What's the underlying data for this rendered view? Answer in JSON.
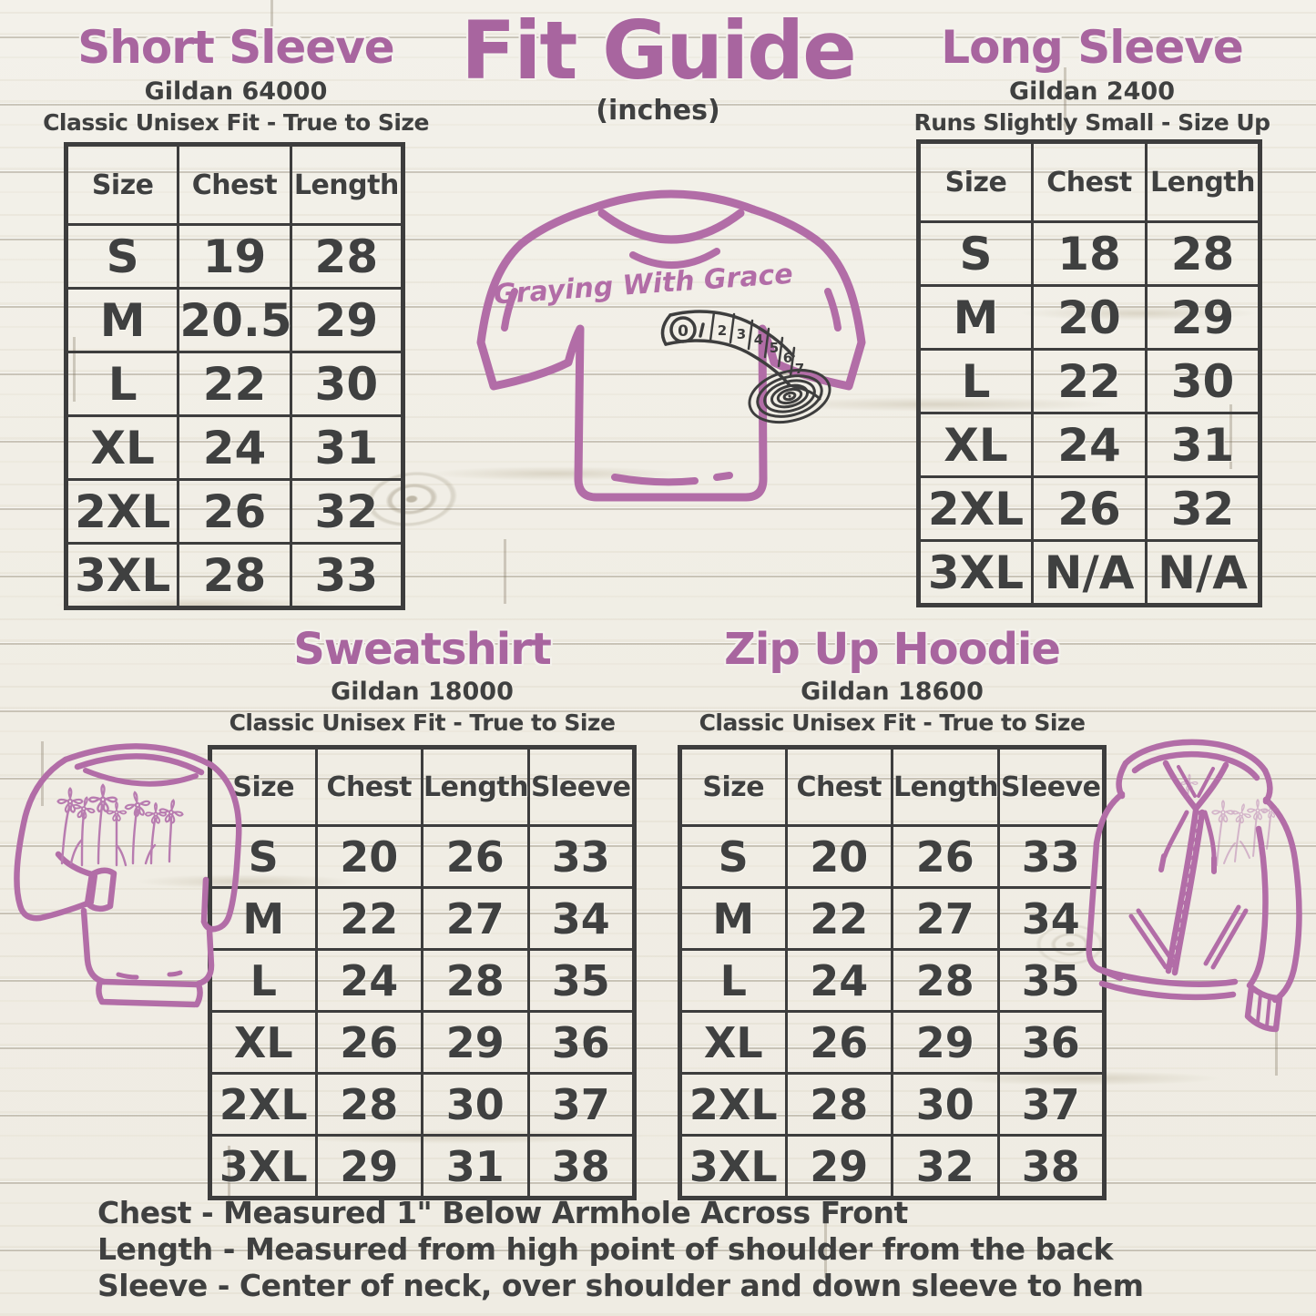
{
  "page": {
    "title": "Fit Guide",
    "subtitle": "(inches)"
  },
  "sections": [
    {
      "id": "short-sleeve",
      "title": "Short Sleeve",
      "model": "Gildan 64000",
      "fit_note": "Classic Unisex Fit - True to Size",
      "columns": [
        "Size",
        "Chest",
        "Length"
      ],
      "rows": [
        [
          "S",
          "19",
          "28"
        ],
        [
          "M",
          "20.5",
          "29"
        ],
        [
          "L",
          "22",
          "30"
        ],
        [
          "XL",
          "24",
          "31"
        ],
        [
          "2XL",
          "26",
          "32"
        ],
        [
          "3XL",
          "28",
          "33"
        ]
      ]
    },
    {
      "id": "long-sleeve",
      "title": "Long Sleeve",
      "model": "Gildan 2400",
      "fit_note": "Runs Slightly Small - Size Up",
      "columns": [
        "Size",
        "Chest",
        "Length"
      ],
      "rows": [
        [
          "S",
          "18",
          "28"
        ],
        [
          "M",
          "20",
          "29"
        ],
        [
          "L",
          "22",
          "30"
        ],
        [
          "XL",
          "24",
          "31"
        ],
        [
          "2XL",
          "26",
          "32"
        ],
        [
          "3XL",
          "N/A",
          "N/A"
        ]
      ]
    },
    {
      "id": "sweatshirt",
      "title": "Sweatshirt",
      "model": "Gildan 18000",
      "fit_note": "Classic Unisex Fit - True to Size",
      "columns": [
        "Size",
        "Chest",
        "Length",
        "Sleeve"
      ],
      "rows": [
        [
          "S",
          "20",
          "26",
          "33"
        ],
        [
          "M",
          "22",
          "27",
          "34"
        ],
        [
          "L",
          "24",
          "28",
          "35"
        ],
        [
          "XL",
          "26",
          "29",
          "36"
        ],
        [
          "2XL",
          "28",
          "30",
          "37"
        ],
        [
          "3XL",
          "29",
          "31",
          "38"
        ]
      ]
    },
    {
      "id": "zip-up-hoodie",
      "title": "Zip Up Hoodie",
      "model": "Gildan 18600",
      "fit_note": "Classic Unisex Fit - True to Size",
      "columns": [
        "Size",
        "Chest",
        "Length",
        "Sleeve"
      ],
      "rows": [
        [
          "S",
          "20",
          "26",
          "33"
        ],
        [
          "M",
          "22",
          "27",
          "34"
        ],
        [
          "L",
          "24",
          "28",
          "35"
        ],
        [
          "XL",
          "26",
          "29",
          "36"
        ],
        [
          "2XL",
          "28",
          "30",
          "37"
        ],
        [
          "3XL",
          "29",
          "32",
          "38"
        ]
      ]
    }
  ],
  "notes": [
    "Chest - Measured 1\" Below Armhole Across Front",
    "Length - Measured from high point of shoulder from the back",
    "Sleeve - Center of neck, over shoulder and down sleeve to hem"
  ],
  "illustration": {
    "shirt_text": "Graying With Grace",
    "tape_numbers": [
      "0",
      "2",
      "3",
      "4",
      "5",
      "6",
      "7"
    ]
  },
  "colors": {
    "accent": "#a8659f",
    "illustration_stroke": "#b26da7",
    "ink": "#3f4040",
    "table_border": "#3d3d3d",
    "wood_background": "#f1efe8"
  }
}
